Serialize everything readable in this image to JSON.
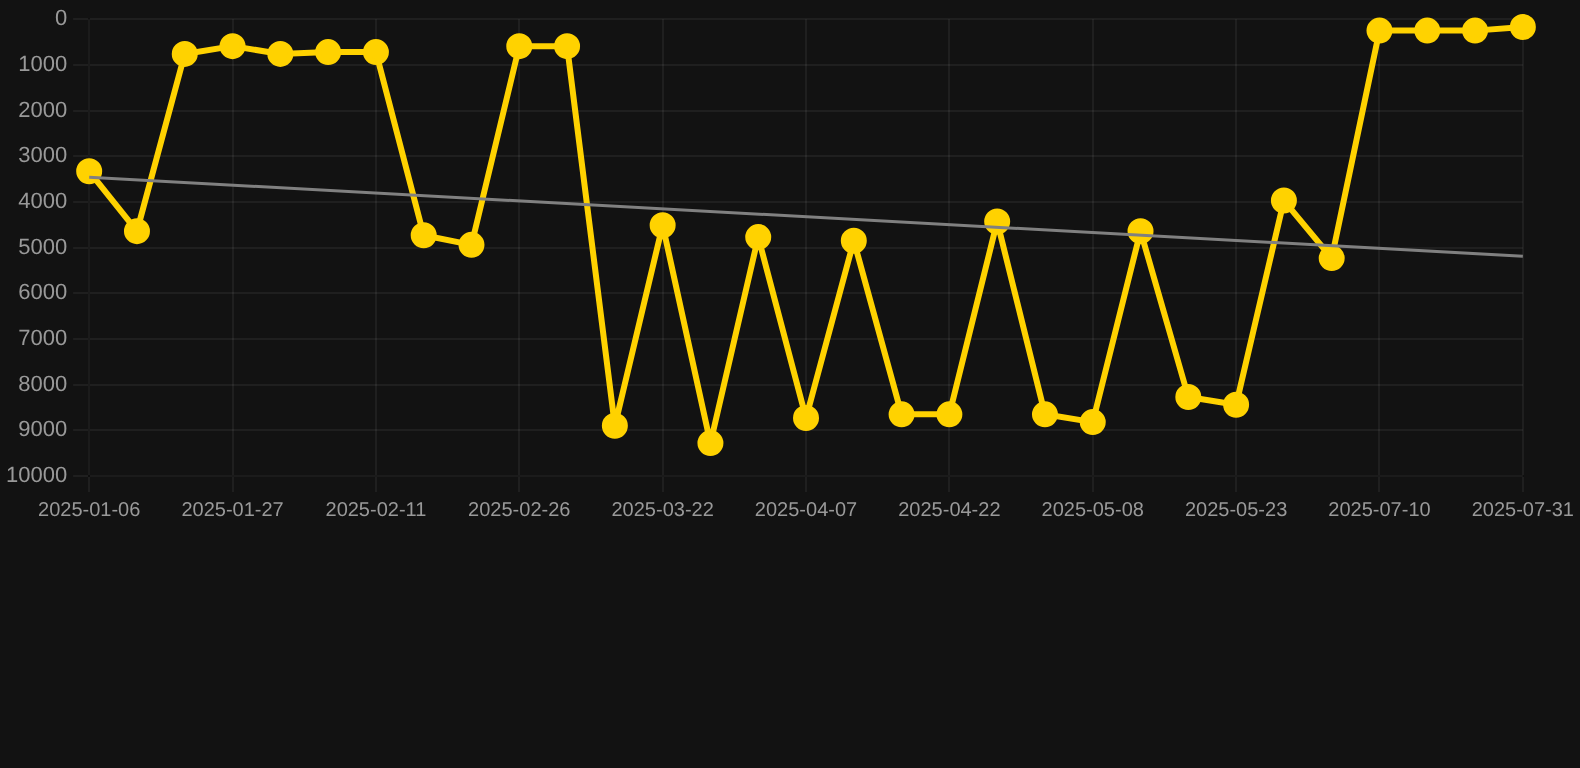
{
  "chart_data": {
    "type": "line",
    "categories": [
      "2025-01-06",
      null,
      null,
      "2025-01-27",
      null,
      null,
      "2025-02-11",
      null,
      null,
      "2025-02-26",
      null,
      null,
      "2025-03-22",
      null,
      null,
      "2025-04-07",
      null,
      null,
      "2025-04-22",
      null,
      null,
      "2025-05-08",
      null,
      null,
      "2025-05-23",
      null,
      null,
      "2025-07-10",
      null,
      null,
      "2025-07-31"
    ],
    "series": [
      {
        "color": "#ffd200",
        "marker": "circle",
        "values": [
          3330,
          4640,
          760,
          590,
          760,
          720,
          720,
          4730,
          4940,
          590,
          590,
          8900,
          4510,
          9280,
          4770,
          8730,
          4850,
          8650,
          8650,
          4430,
          8650,
          8820,
          4640,
          8270,
          8440,
          3970,
          5230,
          250,
          250,
          250,
          170
        ]
      },
      {
        "type": "line",
        "color": "#808080",
        "marker": "none",
        "values": [
          3460,
          null,
          null,
          null,
          null,
          null,
          null,
          null,
          null,
          null,
          null,
          null,
          null,
          null,
          null,
          null,
          null,
          null,
          null,
          null,
          null,
          null,
          null,
          null,
          null,
          null,
          null,
          null,
          null,
          null,
          5190
        ]
      }
    ],
    "ylim": [
      10000,
      0
    ],
    "yticks": [
      0,
      1000,
      2000,
      3000,
      4000,
      5000,
      6000,
      7000,
      8000,
      9000,
      10000
    ],
    "grid": true,
    "legend": false
  }
}
